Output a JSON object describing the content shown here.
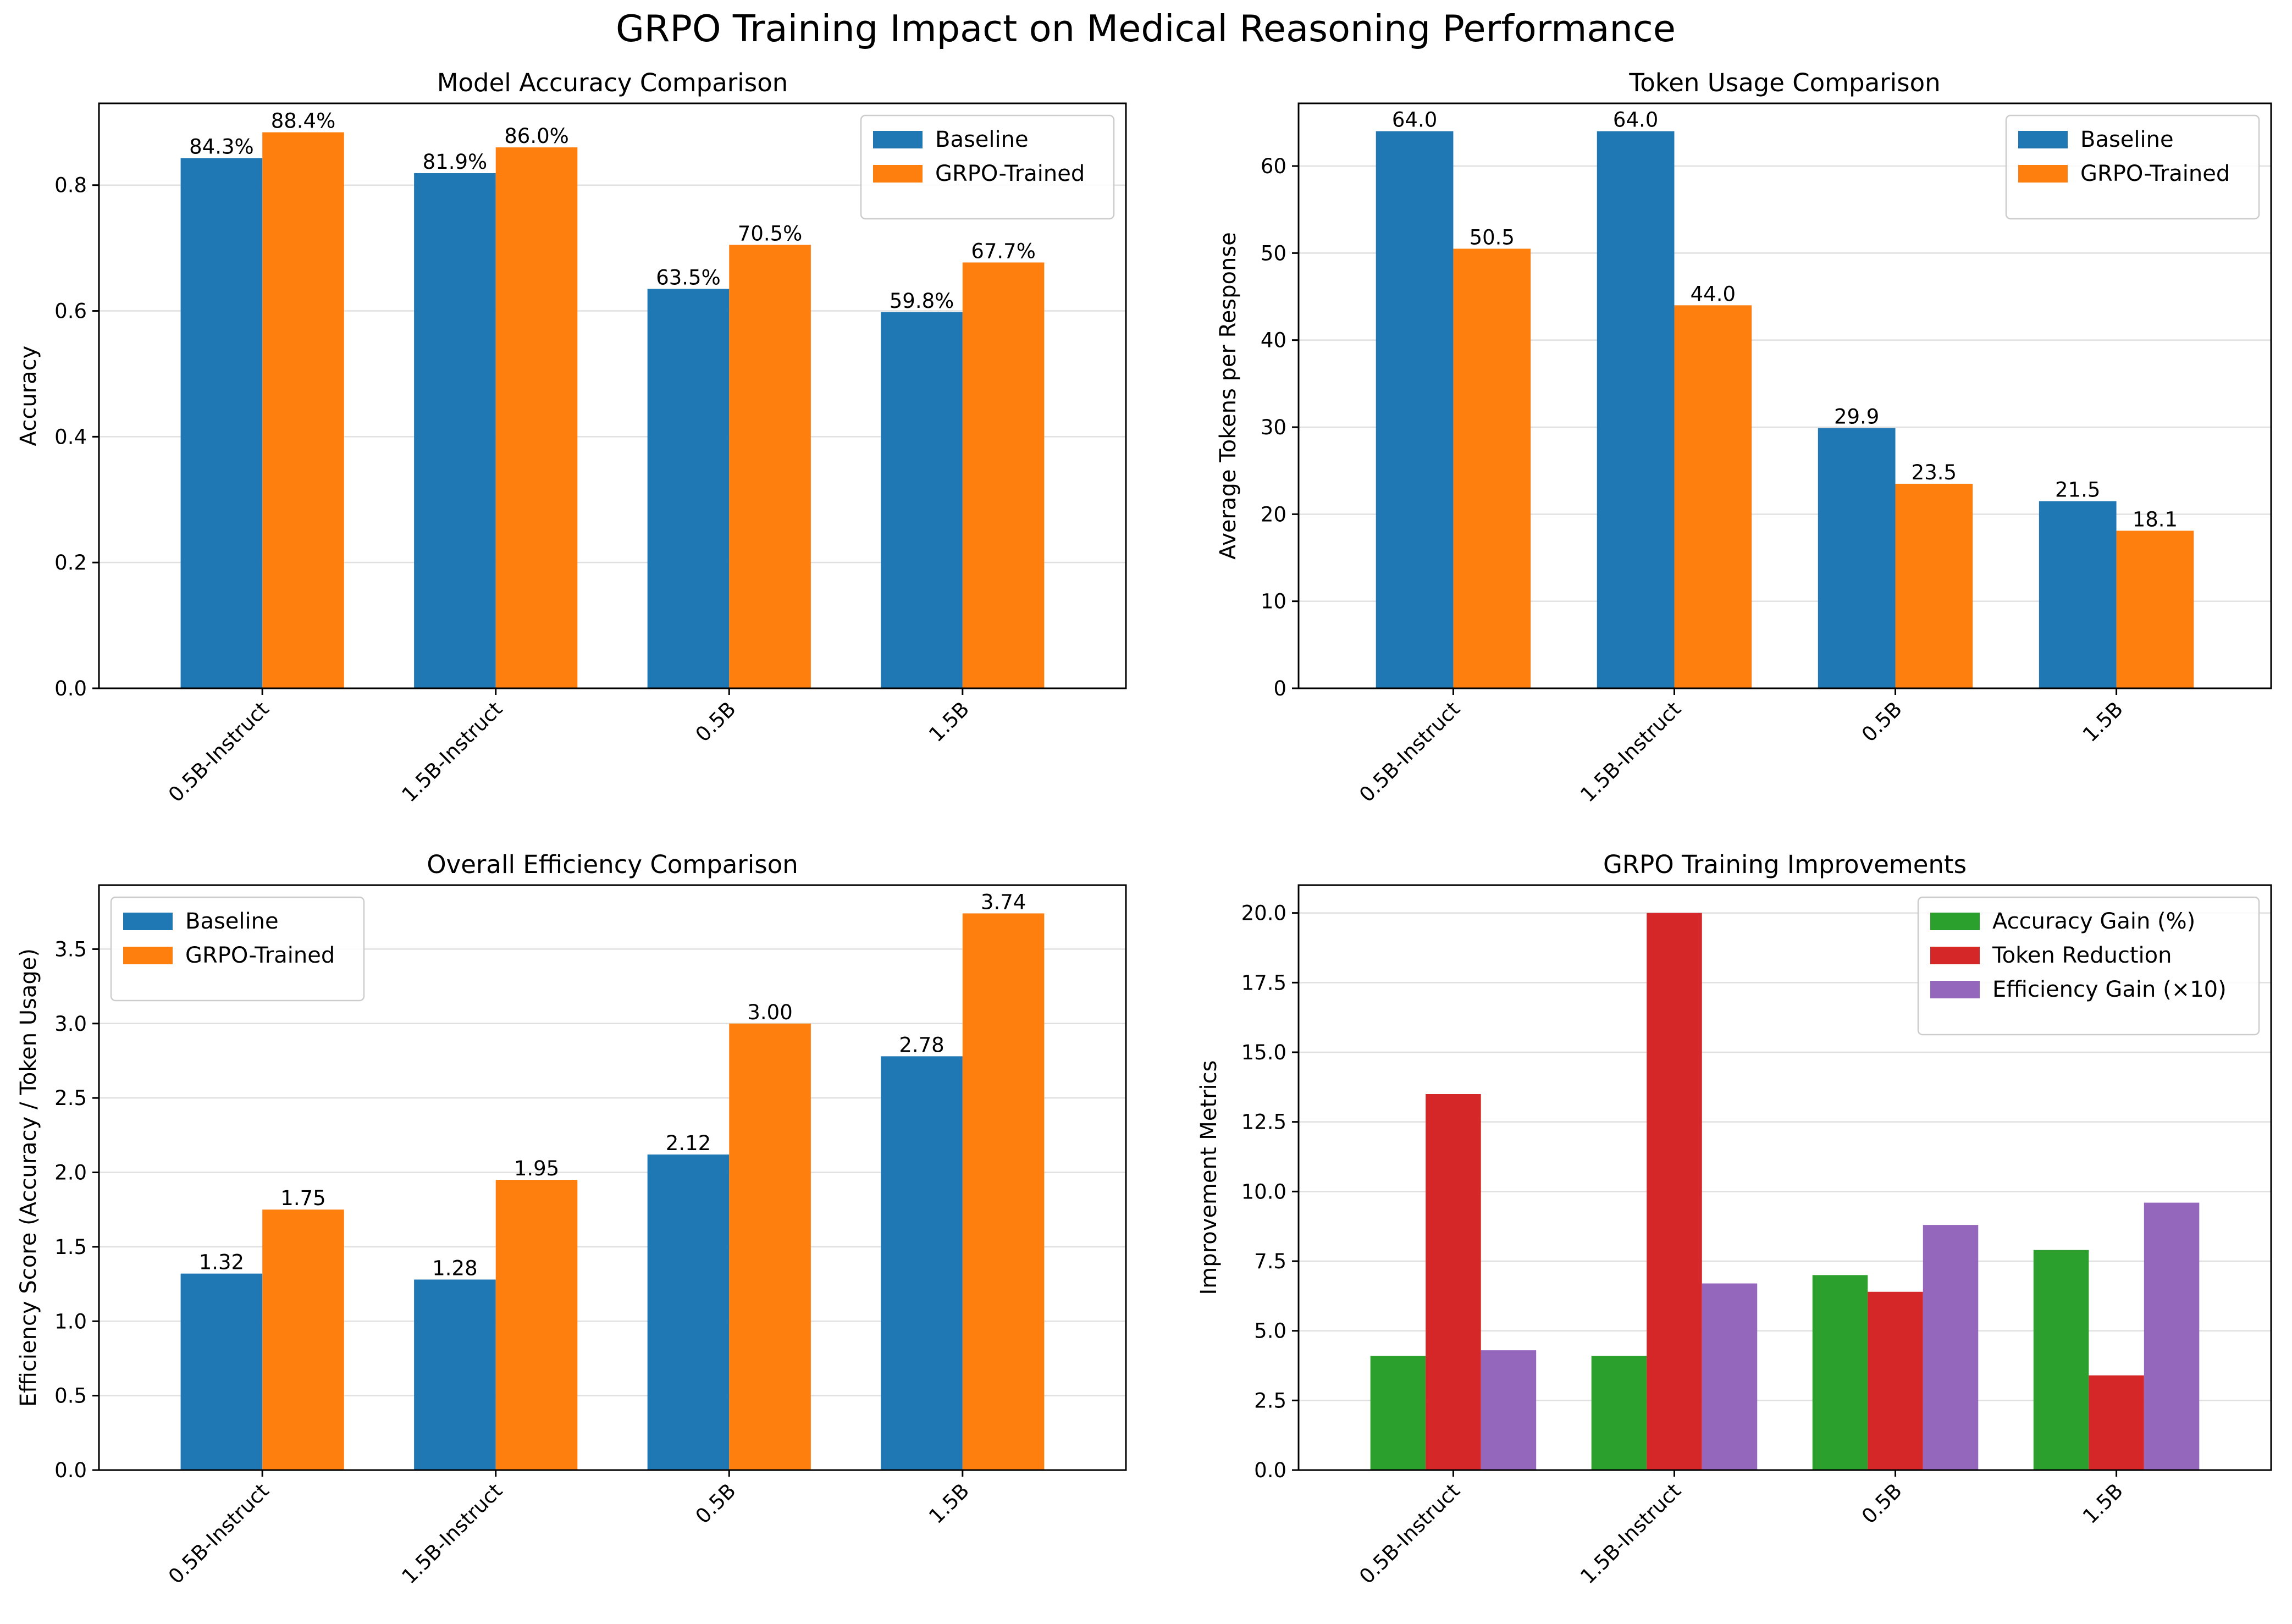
{
  "figure_title": "GRPO Training Impact on Medical Reasoning Performance",
  "chart_data": [
    {
      "type": "bar",
      "title": "Model Accuracy Comparison",
      "xlabel": "",
      "ylabel": "Accuracy",
      "categories": [
        "0.5B-Instruct",
        "1.5B-Instruct",
        "0.5B",
        "1.5B"
      ],
      "ylim": [
        0,
        0.93
      ],
      "yticks": [
        0.0,
        0.2,
        0.4,
        0.6,
        0.8
      ],
      "ytick_labels": [
        "0.0",
        "0.2",
        "0.4",
        "0.6",
        "0.8"
      ],
      "series": [
        {
          "name": "Baseline",
          "color": "#1f77b4",
          "values": [
            0.843,
            0.819,
            0.635,
            0.598
          ],
          "labels": [
            "84.3%",
            "81.9%",
            "63.5%",
            "59.8%"
          ]
        },
        {
          "name": "GRPO-Trained",
          "color": "#ff7f0e",
          "values": [
            0.884,
            0.86,
            0.705,
            0.677
          ],
          "labels": [
            "88.4%",
            "86.0%",
            "70.5%",
            "67.7%"
          ]
        }
      ],
      "legend": "top-right",
      "grid": "y"
    },
    {
      "type": "bar",
      "title": "Token Usage Comparison",
      "xlabel": "",
      "ylabel": "Average Tokens per Response",
      "categories": [
        "0.5B-Instruct",
        "1.5B-Instruct",
        "0.5B",
        "1.5B"
      ],
      "ylim": [
        0,
        67.2
      ],
      "yticks": [
        0,
        10,
        20,
        30,
        40,
        50,
        60
      ],
      "ytick_labels": [
        "0",
        "10",
        "20",
        "30",
        "40",
        "50",
        "60"
      ],
      "series": [
        {
          "name": "Baseline",
          "color": "#1f77b4",
          "values": [
            64.0,
            64.0,
            29.9,
            21.5
          ],
          "labels": [
            "64.0",
            "64.0",
            "29.9",
            "21.5"
          ]
        },
        {
          "name": "GRPO-Trained",
          "color": "#ff7f0e",
          "values": [
            50.5,
            44.0,
            23.5,
            18.1
          ],
          "labels": [
            "50.5",
            "44.0",
            "23.5",
            "18.1"
          ]
        }
      ],
      "legend": "top-right",
      "grid": "y"
    },
    {
      "type": "bar",
      "title": "Overall Efficiency Comparison",
      "xlabel": "",
      "ylabel": "Efficiency Score (Accuracy / Token Usage)",
      "categories": [
        "0.5B-Instruct",
        "1.5B-Instruct",
        "0.5B",
        "1.5B"
      ],
      "ylim": [
        0,
        3.93
      ],
      "yticks": [
        0.0,
        0.5,
        1.0,
        1.5,
        2.0,
        2.5,
        3.0,
        3.5
      ],
      "ytick_labels": [
        "0.0",
        "0.5",
        "1.0",
        "1.5",
        "2.0",
        "2.5",
        "3.0",
        "3.5"
      ],
      "series": [
        {
          "name": "Baseline",
          "color": "#1f77b4",
          "values": [
            1.32,
            1.28,
            2.12,
            2.78
          ],
          "labels": [
            "1.32",
            "1.28",
            "2.12",
            "2.78"
          ]
        },
        {
          "name": "GRPO-Trained",
          "color": "#ff7f0e",
          "values": [
            1.75,
            1.95,
            3.0,
            3.74
          ],
          "labels": [
            "1.75",
            "1.95",
            "3.00",
            "3.74"
          ]
        }
      ],
      "legend": "top-left",
      "grid": "y"
    },
    {
      "type": "bar",
      "title": "GRPO Training Improvements",
      "xlabel": "",
      "ylabel": "Improvement Metrics",
      "categories": [
        "0.5B-Instruct",
        "1.5B-Instruct",
        "0.5B",
        "1.5B"
      ],
      "ylim": [
        0,
        21
      ],
      "yticks": [
        0.0,
        2.5,
        5.0,
        7.5,
        10.0,
        12.5,
        15.0,
        17.5,
        20.0
      ],
      "ytick_labels": [
        "0.0",
        "2.5",
        "5.0",
        "7.5",
        "10.0",
        "12.5",
        "15.0",
        "17.5",
        "20.0"
      ],
      "series": [
        {
          "name": "Accuracy Gain (%)",
          "color": "#2ca02c",
          "values": [
            4.1,
            4.1,
            7.0,
            7.9
          ]
        },
        {
          "name": "Token Reduction",
          "color": "#d62728",
          "values": [
            13.5,
            20.0,
            6.4,
            3.4
          ]
        },
        {
          "name": "Efficiency Gain (×10)",
          "color": "#9467bd",
          "values": [
            4.3,
            6.7,
            8.8,
            9.6
          ]
        }
      ],
      "legend": "top-right",
      "grid": "y"
    }
  ]
}
